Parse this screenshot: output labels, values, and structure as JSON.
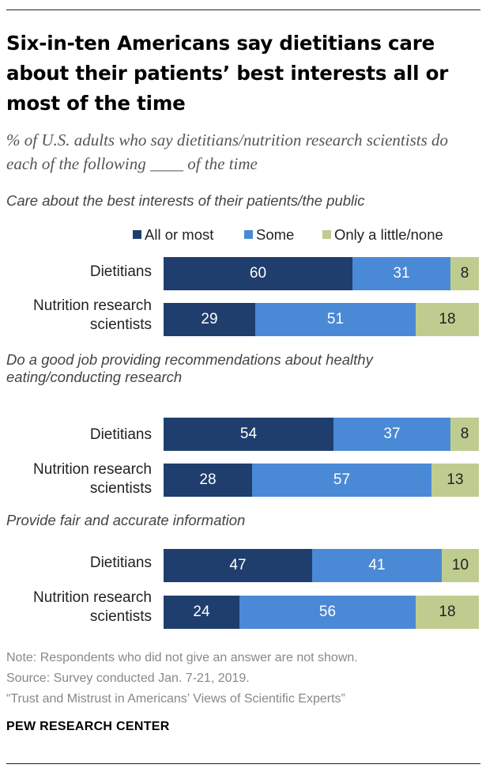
{
  "title": "Six-in-ten Americans say dietitians care about their patients’ best interests all or most of the time",
  "subtitle": "% of U.S. adults who say dietitians/nutrition research scientists do each of the following ____ of the time",
  "colors": {
    "all_or_most": "#1f3e6e",
    "some": "#4a89d6",
    "only_little_none": "#bfcc8f"
  },
  "chart_data": {
    "type": "bar",
    "orientation": "horizontal",
    "stacked": true,
    "title": "Six-in-ten Americans say dietitians care about their patients’ best interests all or most of the time",
    "subtitle": "% of U.S. adults who say dietitians/nutrition research scientists do each of the following ____ of the time",
    "xlim": [
      0,
      100
    ],
    "legend": [
      "All or most",
      "Some",
      "Only a little/none"
    ],
    "legend_position": "top-right",
    "groups": [
      {
        "label": "Care about the best interests of their patients/the public",
        "rows": [
          {
            "label": "Dietitians",
            "values": [
              60,
              31,
              8
            ]
          },
          {
            "label": "Nutrition research scientists",
            "values": [
              29,
              51,
              18
            ]
          }
        ]
      },
      {
        "label": "Do a good job providing recommendations about healthy eating/conducting research",
        "rows": [
          {
            "label": "Dietitians",
            "values": [
              54,
              37,
              8
            ]
          },
          {
            "label": "Nutrition research scientists",
            "values": [
              28,
              57,
              13
            ]
          }
        ]
      },
      {
        "label": "Provide fair and accurate information",
        "rows": [
          {
            "label": "Dietitians",
            "values": [
              47,
              41,
              10
            ]
          },
          {
            "label": "Nutrition research scientists",
            "values": [
              24,
              56,
              18
            ]
          }
        ]
      }
    ]
  },
  "notes": {
    "note": "Note: Respondents who did not give an answer are not shown.",
    "source": "Source: Survey conducted Jan. 7-21, 2019.",
    "report": "“Trust and Mistrust in Americans’ Views of Scientific Experts”"
  },
  "brand": "PEW RESEARCH CENTER"
}
